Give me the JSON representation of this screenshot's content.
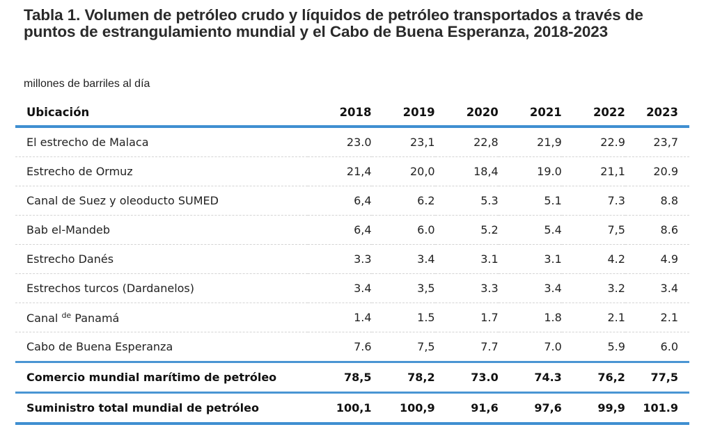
{
  "title": "Tabla 1. Volumen de petróleo crudo y líquidos de petróleo transportados a través de puntos de estrangulamiento mundial y el Cabo de Buena Esperanza, 2018-2023",
  "units": "millones de barriles al día",
  "table": {
    "header": {
      "location": "Ubicación",
      "years": [
        "2018",
        "2019",
        "2020",
        "2021",
        "2022",
        "2023"
      ]
    },
    "rows": [
      {
        "location": "El estrecho de Malaca",
        "values": [
          "23.0",
          "23,1",
          "22,8",
          "21,9",
          "22.9",
          "23,7"
        ]
      },
      {
        "location": "Estrecho de Ormuz",
        "values": [
          "21,4",
          "20,0",
          "18,4",
          "19.0",
          "21,1",
          "20.9"
        ]
      },
      {
        "location": "Canal de Suez y oleoducto SUMED",
        "values": [
          "6,4",
          "6.2",
          "5.3",
          "5.1",
          "7.3",
          "8.8"
        ]
      },
      {
        "location": "Bab el-Mandeb",
        "values": [
          "6,4",
          "6.0",
          "5.2",
          "5.4",
          "7,5",
          "8.6"
        ]
      },
      {
        "location": "Estrecho Danés",
        "values": [
          "3.3",
          "3.4",
          "3.1",
          "3.1",
          "4.2",
          "4.9"
        ]
      },
      {
        "location": "Estrechos turcos (Dardanelos)",
        "values": [
          "3.4",
          "3,5",
          "3.3",
          "3.4",
          "3.2",
          "3.4"
        ]
      },
      {
        "location_parts": [
          "Canal ",
          "de",
          " Panamá"
        ],
        "values": [
          "1.4",
          "1.5",
          "1.7",
          "1.8",
          "2.1",
          "2.1"
        ]
      },
      {
        "location": "Cabo de Buena Esperanza",
        "values": [
          "7.6",
          "7,5",
          "7.7",
          "7.0",
          "5.9",
          "6.0"
        ]
      }
    ],
    "totals": [
      {
        "location": "Comercio mundial marítimo de petróleo",
        "values": [
          "78,5",
          "78,2",
          "73.0",
          "74.3",
          "76,2",
          "77,5"
        ]
      },
      {
        "location": "Suministro total mundial de petróleo",
        "values": [
          "100,1",
          "100,9",
          "91,6",
          "97,6",
          "99,9",
          "101.9"
        ]
      }
    ]
  },
  "colors": {
    "accent_line": "#3f8fd1",
    "dashed_divider": "#d4d4d4",
    "text": "#1a1a1a"
  }
}
